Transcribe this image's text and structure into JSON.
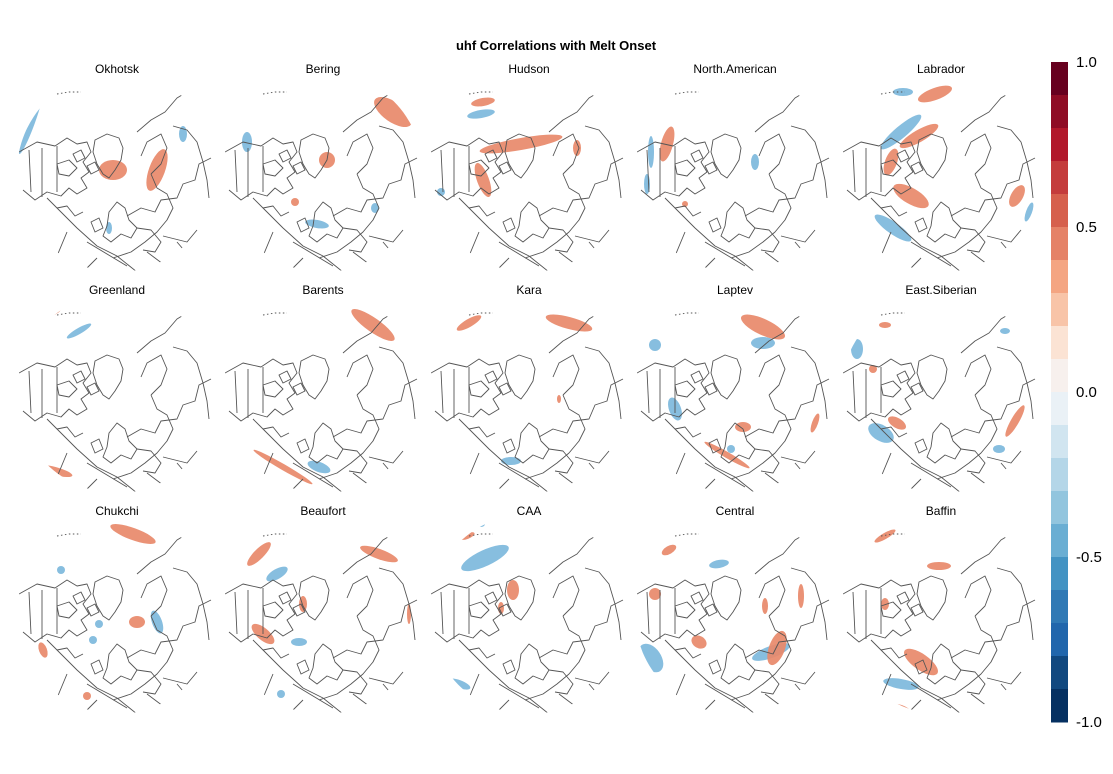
{
  "chart_data": {
    "type": "heatmap",
    "title": "uhf Correlations with Melt Onset",
    "panels": [
      "Okhotsk",
      "Bering",
      "Hudson",
      "North.American",
      "Labrador",
      "Greenland",
      "Barents",
      "Kara",
      "Laptev",
      "East.Siberian",
      "Chukchi",
      "Beaufort",
      "CAA",
      "Central",
      "Baffin"
    ],
    "colorbar": {
      "min": -1.0,
      "max": 1.0,
      "ticks": [
        "1.0",
        "0.5",
        "0.0",
        "-0.5",
        "-1.0"
      ],
      "tick_values": [
        1.0,
        0.5,
        0.0,
        -0.5,
        -1.0
      ],
      "colors_top_to_bottom": [
        "#67001f",
        "#8f0c25",
        "#b2182b",
        "#c43c3c",
        "#d6604d",
        "#e58267",
        "#f4a582",
        "#f8c4a8",
        "#fbe3d4",
        "#f7f0ed",
        "#eaf1f6",
        "#d1e5f0",
        "#b4d6e8",
        "#92c5de",
        "#6aaed3",
        "#4393c3",
        "#3079b5",
        "#2166ac",
        "#11487f",
        "#053061"
      ]
    },
    "colors": {
      "positive": "#e8896a",
      "negative": "#7db8dc",
      "coast": "#555555"
    }
  }
}
